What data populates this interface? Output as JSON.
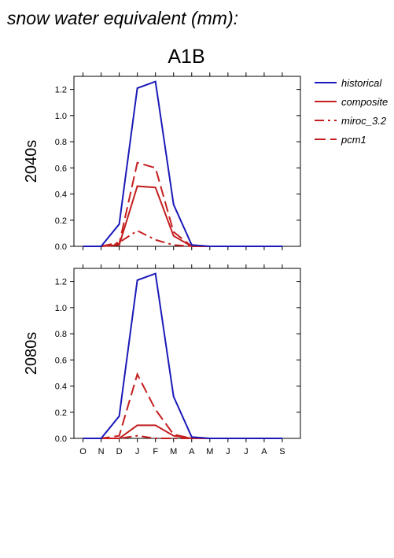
{
  "figure_title": "snow water equivalent (mm):",
  "scenario": "A1B",
  "legend": [
    {
      "label": "historical",
      "color": "#1a1ab8",
      "dash": "solid"
    },
    {
      "label": "composite",
      "color": "#c41e1e",
      "dash": "solid"
    },
    {
      "label": "miroc_3.2",
      "color": "#c41e1e",
      "dash": "dashdot"
    },
    {
      "label": "pcm1",
      "color": "#c41e1e",
      "dash": "dashed"
    }
  ],
  "chart_data": [
    {
      "type": "line",
      "title": "2040s",
      "categories": [
        "O",
        "N",
        "D",
        "J",
        "F",
        "M",
        "A",
        "M",
        "J",
        "J",
        "A",
        "S"
      ],
      "ylim": [
        0,
        1.3
      ],
      "yticks": [
        "0.0",
        "0.2",
        "0.4",
        "0.6",
        "0.8",
        "1.0",
        "1.2"
      ],
      "series": [
        {
          "name": "historical",
          "values": [
            0,
            0,
            0.17,
            1.21,
            1.26,
            0.32,
            0.01,
            0,
            0,
            0,
            0,
            0
          ]
        },
        {
          "name": "composite",
          "values": [
            0,
            0,
            0.01,
            0.46,
            0.45,
            0.08,
            0,
            0,
            0,
            0,
            0,
            0
          ]
        },
        {
          "name": "miroc_3.2",
          "values": [
            0,
            0,
            0.03,
            0.12,
            0.05,
            0.01,
            0,
            0,
            0,
            0,
            0,
            0
          ]
        },
        {
          "name": "pcm1",
          "values": [
            0,
            0,
            0.02,
            0.64,
            0.6,
            0.11,
            0,
            0,
            0,
            0,
            0,
            0
          ]
        }
      ]
    },
    {
      "type": "line",
      "title": "2080s",
      "categories": [
        "O",
        "N",
        "D",
        "J",
        "F",
        "M",
        "A",
        "M",
        "J",
        "J",
        "A",
        "S"
      ],
      "ylim": [
        0,
        1.3
      ],
      "yticks": [
        "0.0",
        "0.2",
        "0.4",
        "0.6",
        "0.8",
        "1.0",
        "1.2"
      ],
      "series": [
        {
          "name": "historical",
          "values": [
            0,
            0,
            0.17,
            1.21,
            1.26,
            0.32,
            0.01,
            0,
            0,
            0,
            0,
            0
          ]
        },
        {
          "name": "composite",
          "values": [
            0,
            0,
            0,
            0.1,
            0.1,
            0.02,
            0,
            0,
            0,
            0,
            0,
            0
          ]
        },
        {
          "name": "miroc_3.2",
          "values": [
            0,
            0,
            0,
            0.02,
            0,
            0,
            0,
            0,
            0,
            0,
            0,
            0
          ]
        },
        {
          "name": "pcm1",
          "values": [
            0,
            0,
            0.02,
            0.49,
            0.22,
            0.03,
            0,
            0,
            0,
            0,
            0,
            0
          ]
        }
      ]
    }
  ]
}
